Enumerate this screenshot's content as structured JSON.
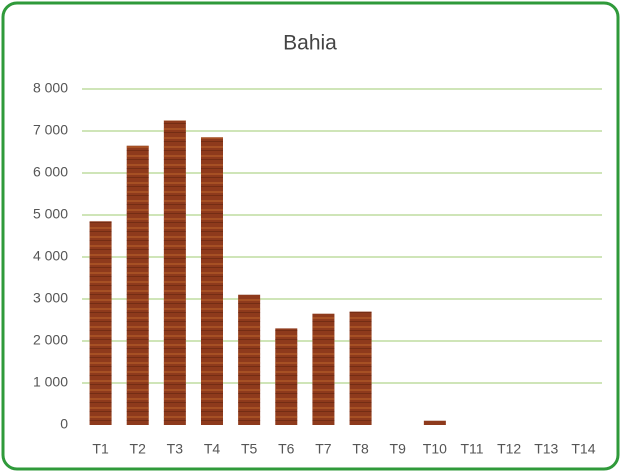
{
  "chart_data": {
    "type": "bar",
    "title": "Bahia",
    "categories": [
      "T1",
      "T2",
      "T3",
      "T4",
      "T5",
      "T6",
      "T7",
      "T8",
      "T9",
      "T10",
      "T11",
      "T12",
      "T13",
      "T14"
    ],
    "values": [
      4850,
      6650,
      7250,
      6850,
      3100,
      2300,
      2650,
      2700,
      0,
      100,
      0,
      0,
      0,
      0
    ],
    "color": "#8e3a1c",
    "ylim": [
      0,
      8000
    ],
    "yticks": [
      0,
      {
        "value": 1000,
        "label": "1 000"
      },
      {
        "value": 2000,
        "label": "2 000"
      },
      {
        "value": 3000,
        "label": "3 000"
      },
      {
        "value": 4000,
        "label": "4 000"
      },
      {
        "value": 5000,
        "label": "5 000"
      },
      {
        "value": 6000,
        "label": "6 000"
      },
      {
        "value": 7000,
        "label": "7 000"
      },
      {
        "value": 8000,
        "label": "8 000"
      }
    ],
    "grid": true
  }
}
